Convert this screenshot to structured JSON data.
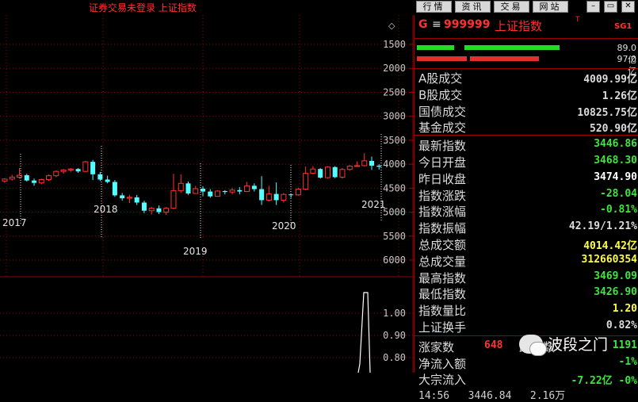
{
  "window": {
    "title": "证券交易未登录 上证指数",
    "nav_buttons": [
      "行情",
      "资讯",
      "交易",
      "网站"
    ],
    "win_buttons": [
      "–",
      "▭",
      "✕"
    ]
  },
  "chart": {
    "y_labels": [
      "6000",
      "5500",
      "5000",
      "4500",
      "4000",
      "3500",
      "3000",
      "2500",
      "2000",
      "1500"
    ],
    "year_labels": [
      "2017",
      "2018",
      "2019",
      "2020",
      "2021"
    ],
    "lower_labels": [
      "1.00",
      "0.90",
      "0.80"
    ],
    "diamond_icon": "◇",
    "colors": {
      "up": "#ff3232",
      "down": "#54ffff",
      "grid": "#9a0000",
      "spike": "#ffffff"
    }
  },
  "chart_data": {
    "type": "candlestick",
    "ylim": [
      1300,
      6300
    ],
    "yticks": [
      1500,
      2000,
      2500,
      3000,
      3500,
      4000,
      4500,
      5000,
      5500,
      6000
    ],
    "years": [
      "2017",
      "2018",
      "2019",
      "2020",
      "2021"
    ],
    "candles": [
      {
        "o": 3150,
        "h": 3210,
        "l": 3110,
        "c": 3190
      },
      {
        "o": 3190,
        "h": 3280,
        "l": 3160,
        "c": 3230
      },
      {
        "o": 3230,
        "h": 3420,
        "l": 3200,
        "c": 3270
      },
      {
        "o": 3270,
        "h": 3300,
        "l": 3140,
        "c": 3160
      },
      {
        "o": 3160,
        "h": 3200,
        "l": 3050,
        "c": 3110
      },
      {
        "o": 3110,
        "h": 3200,
        "l": 3080,
        "c": 3180
      },
      {
        "o": 3180,
        "h": 3290,
        "l": 3150,
        "c": 3260
      },
      {
        "o": 3260,
        "h": 3370,
        "l": 3230,
        "c": 3350
      },
      {
        "o": 3350,
        "h": 3400,
        "l": 3300,
        "c": 3380
      },
      {
        "o": 3380,
        "h": 3420,
        "l": 3340,
        "c": 3400
      },
      {
        "o": 3400,
        "h": 3420,
        "l": 3320,
        "c": 3350
      },
      {
        "o": 3350,
        "h": 3570,
        "l": 3340,
        "c": 3550
      },
      {
        "o": 3550,
        "h": 3590,
        "l": 3170,
        "c": 3290
      },
      {
        "o": 3290,
        "h": 3340,
        "l": 3150,
        "c": 3180
      },
      {
        "o": 3180,
        "h": 3260,
        "l": 3100,
        "c": 3130
      },
      {
        "o": 3130,
        "h": 3170,
        "l": 2820,
        "c": 2850
      },
      {
        "o": 2850,
        "h": 2900,
        "l": 2740,
        "c": 2790
      },
      {
        "o": 2790,
        "h": 2860,
        "l": 2690,
        "c": 2810
      },
      {
        "o": 2810,
        "h": 2860,
        "l": 2650,
        "c": 2700
      },
      {
        "o": 2700,
        "h": 2740,
        "l": 2480,
        "c": 2530
      },
      {
        "o": 2530,
        "h": 2610,
        "l": 2450,
        "c": 2580
      },
      {
        "o": 2580,
        "h": 2640,
        "l": 2460,
        "c": 2500
      },
      {
        "o": 2500,
        "h": 2610,
        "l": 2440,
        "c": 2580
      },
      {
        "o": 2580,
        "h": 3300,
        "l": 2560,
        "c": 2950
      },
      {
        "o": 2950,
        "h": 3290,
        "l": 2900,
        "c": 3100
      },
      {
        "o": 3100,
        "h": 3140,
        "l": 2860,
        "c": 2890
      },
      {
        "o": 2890,
        "h": 3050,
        "l": 2880,
        "c": 2990
      },
      {
        "o": 2990,
        "h": 3040,
        "l": 2830,
        "c": 2930
      },
      {
        "o": 2930,
        "h": 2980,
        "l": 2800,
        "c": 2830
      },
      {
        "o": 2830,
        "h": 2960,
        "l": 2820,
        "c": 2940
      },
      {
        "o": 2940,
        "h": 2960,
        "l": 2870,
        "c": 2920
      },
      {
        "o": 2920,
        "h": 3010,
        "l": 2870,
        "c": 2960
      },
      {
        "o": 2960,
        "h": 3020,
        "l": 2870,
        "c": 2930
      },
      {
        "o": 2930,
        "h": 3130,
        "l": 2920,
        "c": 3050
      },
      {
        "o": 3050,
        "h": 3100,
        "l": 2930,
        "c": 2980
      },
      {
        "o": 2980,
        "h": 3250,
        "l": 2650,
        "c": 2750
      },
      {
        "o": 2750,
        "h": 3050,
        "l": 2720,
        "c": 2880
      },
      {
        "o": 2880,
        "h": 3120,
        "l": 2650,
        "c": 2750
      },
      {
        "o": 2750,
        "h": 2900,
        "l": 2700,
        "c": 2870
      },
      {
        "o": 2870,
        "h": 2890,
        "l": 2800,
        "c": 2860
      },
      {
        "o": 2860,
        "h": 3010,
        "l": 2840,
        "c": 2980
      },
      {
        "o": 2980,
        "h": 3450,
        "l": 2960,
        "c": 3310
      },
      {
        "o": 3310,
        "h": 3460,
        "l": 3290,
        "c": 3400
      },
      {
        "o": 3400,
        "h": 3420,
        "l": 3200,
        "c": 3220
      },
      {
        "o": 3220,
        "h": 3460,
        "l": 3200,
        "c": 3440
      },
      {
        "o": 3440,
        "h": 3460,
        "l": 3210,
        "c": 3230
      },
      {
        "o": 3230,
        "h": 3420,
        "l": 3200,
        "c": 3390
      },
      {
        "o": 3390,
        "h": 3480,
        "l": 3370,
        "c": 3460
      },
      {
        "o": 3460,
        "h": 3560,
        "l": 3450,
        "c": 3470
      },
      {
        "o": 3470,
        "h": 3730,
        "l": 3450,
        "c": 3570
      },
      {
        "o": 3570,
        "h": 3660,
        "l": 3380,
        "c": 3470
      },
      {
        "o": 3470,
        "h": 3500,
        "l": 3390,
        "c": 3447
      }
    ],
    "volume_spikes": [
      0.02,
      1.0
    ]
  },
  "panel": {
    "header": {
      "g": "G",
      "menu_icon": "≡",
      "code": "999999",
      "name": "上证指数",
      "sup": "T",
      "sg": "SG1"
    },
    "bars": [
      {
        "label": "89.0亿",
        "color": "#22dd22",
        "segments": [
          0.2,
          0.76
        ],
        "split": 0.25
      },
      {
        "label": "97.0亿",
        "color": "#e03030",
        "segments": [
          0.27,
          0.65
        ],
        "split": 0.28
      }
    ],
    "rows1": [
      {
        "label": "A股成交",
        "value": "4009.99亿",
        "color": "#dcdcdc"
      },
      {
        "label": "B股成交",
        "value": "1.26亿",
        "color": "#dcdcdc"
      },
      {
        "label": "国债成交",
        "value": "10825.75亿",
        "color": "#dcdcdc"
      },
      {
        "label": "基金成交",
        "value": "520.90亿",
        "color": "#dcdcdc"
      }
    ],
    "rows2": [
      {
        "label": "最新指数",
        "value": "3446.86",
        "color": "#3ce63c"
      },
      {
        "label": "今日开盘",
        "value": "3468.30",
        "color": "#3ce63c"
      },
      {
        "label": "昨日收盘",
        "value": "3474.90",
        "color": "#ffffff"
      },
      {
        "label": "指数涨跌",
        "value": "-28.04",
        "color": "#3ce63c"
      },
      {
        "label": "指数涨幅",
        "value": "-0.81%",
        "color": "#3ce63c"
      },
      {
        "label": "指数振幅",
        "value": "42.19/1.21%",
        "color": "#dcdcdc"
      },
      {
        "label": "总成交额",
        "value": "4014.42亿",
        "color": "#ffff40"
      },
      {
        "label": "总成交量",
        "value": "312660354",
        "color": "#ffff40"
      },
      {
        "label": "最高指数",
        "value": "3469.09",
        "color": "#3ce63c"
      },
      {
        "label": "最低指数",
        "value": "3426.90",
        "color": "#3ce63c"
      },
      {
        "label": "指数量比",
        "value": "1.20",
        "color": "#ffff40"
      },
      {
        "label": "上证换手",
        "value": "0.82%",
        "color": "#dcdcdc"
      }
    ],
    "rows3": [
      {
        "label": "涨家数",
        "value": "648",
        "color": "#ff3232",
        "label2": "跌家数",
        "value2": "1191",
        "color2": "#3ce63c"
      },
      {
        "label": "净流入额",
        "value": "-1%",
        "color": "#3ce63c"
      },
      {
        "label": "大宗流入",
        "value": "-7.22亿 -0%",
        "color": "#3ce63c"
      }
    ],
    "bottom_partial": "14:56   3446.84   2.16万",
    "watermark": {
      "text": "波段之门",
      "icon": "wechat-icon"
    }
  }
}
